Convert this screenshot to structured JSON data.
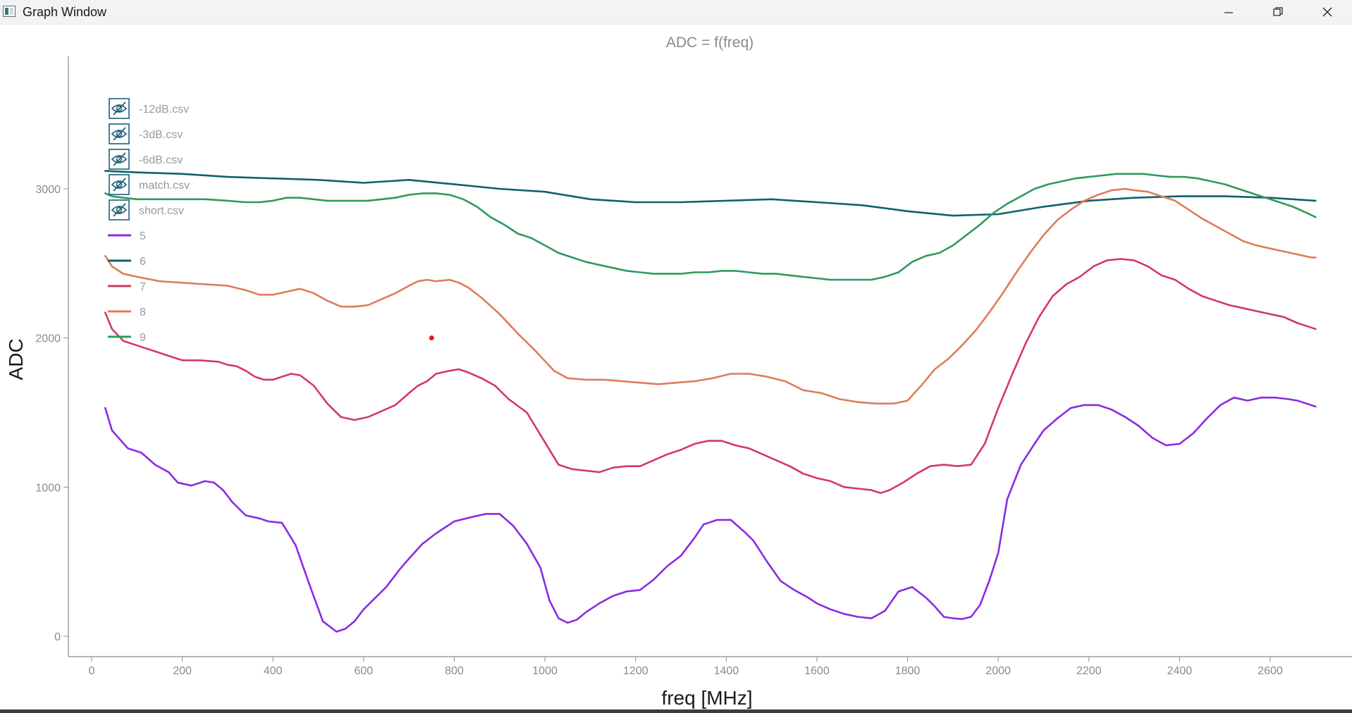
{
  "window": {
    "title": "Graph Window",
    "minimize_icon": "minimize-icon",
    "maximize_icon": "restore-icon",
    "close_icon": "close-icon"
  },
  "chart_data": {
    "type": "line",
    "title": "ADC = f(freq)",
    "xlabel": "freq [MHz]",
    "ylabel": "ADC",
    "xlim": [
      -50,
      2780
    ],
    "ylim": [
      -140,
      3890
    ],
    "x_ticks": [
      0,
      200,
      400,
      600,
      800,
      1000,
      1200,
      1400,
      1600,
      1800,
      2000,
      2200,
      2400,
      2600
    ],
    "y_ticks": [
      0,
      1000,
      2000,
      3000
    ],
    "grid": false,
    "legend_position": "top-left",
    "files": [
      {
        "name": "-12dB.csv",
        "icon": "hidden-eye-icon"
      },
      {
        "name": "-3dB.csv",
        "icon": "hidden-eye-icon"
      },
      {
        "name": "-6dB.csv",
        "icon": "hidden-eye-icon"
      },
      {
        "name": "match.csv",
        "icon": "hidden-eye-icon"
      },
      {
        "name": "short.csv",
        "icon": "hidden-eye-icon"
      }
    ],
    "series": [
      {
        "name": "5",
        "color": "#8a2be2",
        "x": [
          30,
          45,
          80,
          110,
          140,
          170,
          190,
          220,
          250,
          270,
          290,
          310,
          340,
          370,
          390,
          420,
          450,
          480,
          510,
          540,
          560,
          580,
          600,
          620,
          650,
          680,
          700,
          730,
          760,
          800,
          840,
          870,
          900,
          930,
          960,
          990,
          1010,
          1030,
          1050,
          1070,
          1090,
          1120,
          1150,
          1180,
          1210,
          1240,
          1270,
          1300,
          1330,
          1350,
          1380,
          1410,
          1440,
          1460,
          1490,
          1520,
          1550,
          1580,
          1600,
          1630,
          1660,
          1690,
          1720,
          1750,
          1780,
          1810,
          1840,
          1860,
          1880,
          1900,
          1920,
          1940,
          1960,
          1980,
          2000,
          2020,
          2050,
          2080,
          2100,
          2130,
          2160,
          2190,
          2220,
          2250,
          2280,
          2310,
          2340,
          2370,
          2400,
          2430,
          2460,
          2490,
          2520,
          2550,
          2580,
          2610,
          2640,
          2660,
          2680,
          2700
        ],
        "y": [
          1530,
          1380,
          1260,
          1230,
          1150,
          1100,
          1030,
          1010,
          1040,
          1030,
          980,
          900,
          810,
          790,
          770,
          760,
          610,
          350,
          100,
          30,
          50,
          100,
          180,
          240,
          330,
          450,
          520,
          620,
          690,
          770,
          800,
          820,
          820,
          740,
          620,
          460,
          240,
          120,
          90,
          110,
          160,
          220,
          270,
          300,
          310,
          380,
          470,
          540,
          660,
          750,
          780,
          780,
          700,
          640,
          500,
          370,
          310,
          260,
          220,
          180,
          150,
          130,
          120,
          170,
          300,
          330,
          260,
          200,
          130,
          120,
          115,
          130,
          210,
          370,
          560,
          920,
          1150,
          1290,
          1380,
          1460,
          1530,
          1550,
          1550,
          1520,
          1470,
          1410,
          1330,
          1280,
          1290,
          1360,
          1460,
          1550,
          1600,
          1580,
          1600,
          1600,
          1590,
          1580,
          1560,
          1540
        ]
      },
      {
        "name": "6",
        "color": "#11616b",
        "x": [
          30,
          100,
          200,
          300,
          400,
          500,
          600,
          700,
          800,
          900,
          1000,
          1100,
          1200,
          1300,
          1400,
          1500,
          1600,
          1700,
          1800,
          1900,
          2000,
          2100,
          2200,
          2300,
          2400,
          2500,
          2600,
          2700
        ],
        "y": [
          3120,
          3110,
          3100,
          3080,
          3070,
          3060,
          3040,
          3060,
          3030,
          3000,
          2980,
          2930,
          2910,
          2910,
          2920,
          2930,
          2910,
          2890,
          2850,
          2820,
          2830,
          2880,
          2920,
          2940,
          2950,
          2950,
          2940,
          2920
        ]
      },
      {
        "name": "7",
        "color": "#d43864",
        "x": [
          30,
          45,
          70,
          100,
          140,
          170,
          200,
          240,
          280,
          300,
          320,
          340,
          360,
          380,
          400,
          420,
          440,
          460,
          490,
          520,
          550,
          580,
          610,
          640,
          670,
          700,
          720,
          740,
          760,
          790,
          810,
          830,
          860,
          890,
          920,
          960,
          1000,
          1030,
          1060,
          1090,
          1120,
          1150,
          1180,
          1210,
          1240,
          1270,
          1300,
          1330,
          1360,
          1390,
          1420,
          1450,
          1480,
          1510,
          1540,
          1570,
          1600,
          1630,
          1660,
          1690,
          1720,
          1740,
          1760,
          1790,
          1820,
          1850,
          1880,
          1910,
          1940,
          1970,
          2000,
          2030,
          2060,
          2090,
          2120,
          2150,
          2180,
          2210,
          2240,
          2270,
          2300,
          2330,
          2360,
          2390,
          2420,
          2450,
          2480,
          2510,
          2540,
          2570,
          2600,
          2630,
          2660,
          2690,
          2700
        ],
        "y": [
          2170,
          2060,
          1980,
          1950,
          1910,
          1880,
          1850,
          1850,
          1840,
          1820,
          1810,
          1780,
          1740,
          1720,
          1720,
          1740,
          1760,
          1750,
          1680,
          1560,
          1470,
          1450,
          1470,
          1510,
          1550,
          1630,
          1680,
          1710,
          1760,
          1780,
          1790,
          1770,
          1730,
          1680,
          1590,
          1500,
          1300,
          1150,
          1120,
          1110,
          1100,
          1130,
          1140,
          1140,
          1180,
          1220,
          1250,
          1290,
          1310,
          1310,
          1280,
          1260,
          1220,
          1180,
          1140,
          1090,
          1060,
          1040,
          1000,
          990,
          980,
          960,
          980,
          1030,
          1090,
          1140,
          1150,
          1140,
          1150,
          1290,
          1530,
          1750,
          1960,
          2140,
          2280,
          2360,
          2410,
          2480,
          2520,
          2530,
          2520,
          2480,
          2420,
          2390,
          2330,
          2280,
          2250,
          2220,
          2200,
          2180,
          2160,
          2140,
          2100,
          2070,
          2060
        ]
      },
      {
        "name": "8",
        "color": "#e07b5c",
        "x": [
          30,
          45,
          70,
          100,
          150,
          200,
          250,
          300,
          340,
          370,
          400,
          430,
          460,
          490,
          520,
          550,
          580,
          610,
          640,
          670,
          700,
          720,
          740,
          760,
          790,
          810,
          830,
          860,
          900,
          940,
          980,
          1020,
          1050,
          1090,
          1130,
          1170,
          1210,
          1250,
          1290,
          1330,
          1370,
          1410,
          1450,
          1490,
          1530,
          1570,
          1610,
          1650,
          1690,
          1730,
          1770,
          1800,
          1830,
          1860,
          1890,
          1920,
          1950,
          1980,
          2010,
          2040,
          2070,
          2100,
          2130,
          2160,
          2190,
          2220,
          2250,
          2280,
          2300,
          2330,
          2360,
          2390,
          2420,
          2450,
          2480,
          2510,
          2540,
          2570,
          2600,
          2630,
          2660,
          2690,
          2700
        ],
        "y": [
          2550,
          2480,
          2430,
          2410,
          2380,
          2370,
          2360,
          2350,
          2320,
          2290,
          2290,
          2310,
          2330,
          2300,
          2250,
          2210,
          2210,
          2220,
          2260,
          2300,
          2350,
          2380,
          2390,
          2380,
          2390,
          2370,
          2340,
          2270,
          2160,
          2030,
          1910,
          1780,
          1730,
          1720,
          1720,
          1710,
          1700,
          1690,
          1700,
          1710,
          1730,
          1760,
          1760,
          1740,
          1710,
          1650,
          1630,
          1590,
          1570,
          1560,
          1560,
          1580,
          1680,
          1790,
          1860,
          1950,
          2050,
          2170,
          2300,
          2440,
          2570,
          2690,
          2790,
          2860,
          2920,
          2960,
          2990,
          3000,
          2990,
          2980,
          2950,
          2920,
          2860,
          2800,
          2750,
          2700,
          2650,
          2620,
          2600,
          2580,
          2560,
          2540,
          2540
        ]
      },
      {
        "name": "9",
        "color": "#2e9a5e",
        "x": [
          30,
          45,
          70,
          100,
          150,
          200,
          250,
          300,
          340,
          370,
          400,
          430,
          460,
          490,
          520,
          550,
          580,
          610,
          640,
          670,
          700,
          730,
          760,
          790,
          820,
          850,
          880,
          910,
          940,
          970,
          1000,
          1030,
          1060,
          1090,
          1120,
          1150,
          1180,
          1210,
          1240,
          1270,
          1300,
          1330,
          1360,
          1390,
          1420,
          1450,
          1480,
          1510,
          1540,
          1570,
          1600,
          1630,
          1660,
          1690,
          1720,
          1750,
          1780,
          1810,
          1840,
          1870,
          1900,
          1930,
          1960,
          1990,
          2020,
          2050,
          2080,
          2110,
          2140,
          2170,
          2200,
          2230,
          2260,
          2290,
          2320,
          2350,
          2380,
          2410,
          2440,
          2470,
          2500,
          2530,
          2560,
          2590,
          2620,
          2650,
          2680,
          2700
        ],
        "y": [
          2970,
          2950,
          2940,
          2930,
          2930,
          2930,
          2930,
          2920,
          2910,
          2910,
          2920,
          2940,
          2940,
          2930,
          2920,
          2920,
          2920,
          2920,
          2930,
          2940,
          2960,
          2970,
          2970,
          2960,
          2930,
          2880,
          2810,
          2760,
          2700,
          2670,
          2620,
          2570,
          2540,
          2510,
          2490,
          2470,
          2450,
          2440,
          2430,
          2430,
          2430,
          2440,
          2440,
          2450,
          2450,
          2440,
          2430,
          2430,
          2420,
          2410,
          2400,
          2390,
          2390,
          2390,
          2390,
          2410,
          2440,
          2510,
          2550,
          2570,
          2620,
          2690,
          2760,
          2840,
          2900,
          2950,
          3000,
          3030,
          3050,
          3070,
          3080,
          3090,
          3100,
          3100,
          3100,
          3090,
          3080,
          3080,
          3070,
          3050,
          3030,
          3000,
          2970,
          2940,
          2910,
          2880,
          2840,
          2810
        ]
      }
    ],
    "annotations": [
      {
        "type": "marker",
        "x": 750,
        "y": 2000,
        "color": "#e41a1c"
      }
    ]
  }
}
